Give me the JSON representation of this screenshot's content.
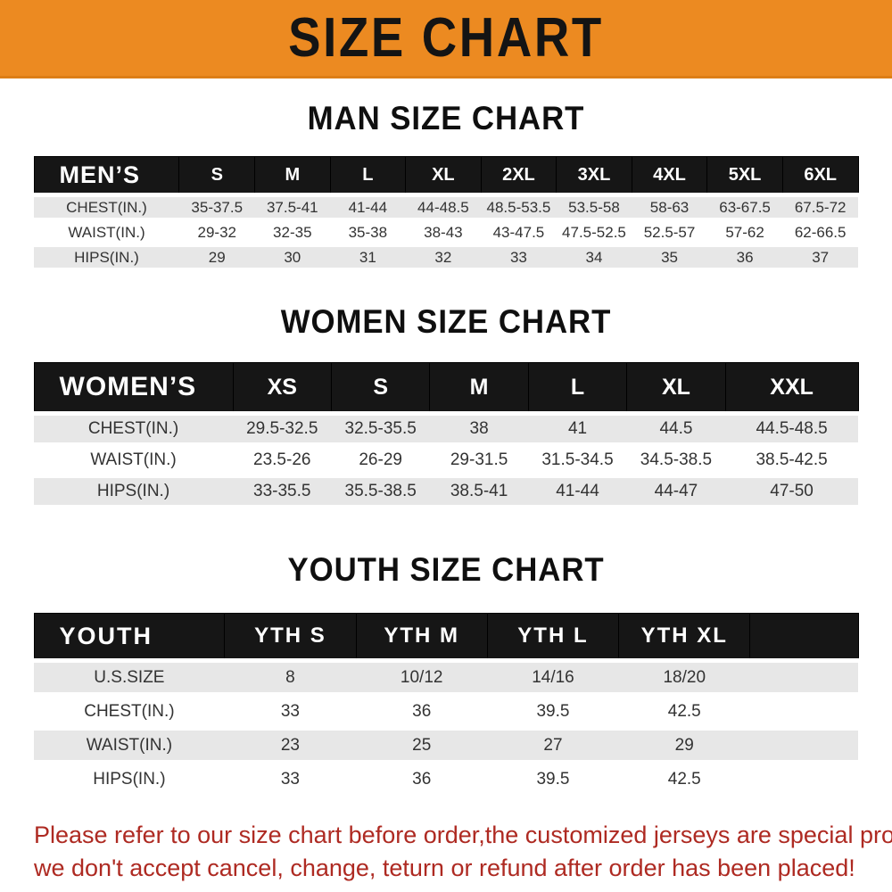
{
  "banner": {
    "title": "SIZE CHART"
  },
  "colors": {
    "banner_orange": "#EC8A21",
    "header_black": "#161616",
    "row_gray": "#E7E7E7",
    "footer_red": "#AE2A22"
  },
  "sections": [
    {
      "title": "MAN SIZE CHART",
      "header": [
        "MEN’S",
        "S",
        "M",
        "L",
        "XL",
        "2XL",
        "3XL",
        "4XL",
        "5XL",
        "6XL"
      ],
      "rows": [
        [
          "CHEST(IN.)",
          "35-37.5",
          "37.5-41",
          "41-44",
          "44-48.5",
          "48.5-53.5",
          "53.5-58",
          "58-63",
          "63-67.5",
          "67.5-72"
        ],
        [
          "WAIST(IN.)",
          "29-32",
          "32-35",
          "35-38",
          "38-43",
          "43-47.5",
          "47.5-52.5",
          "52.5-57",
          "57-62",
          "62-66.5"
        ],
        [
          "HIPS(IN.)",
          "29",
          "30",
          "31",
          "32",
          "33",
          "34",
          "35",
          "36",
          "37"
        ]
      ]
    },
    {
      "title": "WOMEN SIZE CHART",
      "header": [
        "WOMEN’S",
        "XS",
        "S",
        "M",
        "L",
        "XL",
        "XXL"
      ],
      "rows": [
        [
          "CHEST(IN.)",
          "29.5-32.5",
          "32.5-35.5",
          "38",
          "41",
          "44.5",
          "44.5-48.5"
        ],
        [
          "WAIST(IN.)",
          "23.5-26",
          "26-29",
          "29-31.5",
          "31.5-34.5",
          "34.5-38.5",
          "38.5-42.5"
        ],
        [
          "HIPS(IN.)",
          "33-35.5",
          "35.5-38.5",
          "38.5-41",
          "41-44",
          "44-47",
          "47-50"
        ]
      ]
    },
    {
      "title": "YOUTH SIZE CHART",
      "header": [
        "YOUTH",
        "YTH S",
        "YTH M",
        "YTH L",
        "YTH XL",
        ""
      ],
      "rows": [
        [
          "U.S.SIZE",
          "8",
          "10/12",
          "14/16",
          "18/20",
          ""
        ],
        [
          "CHEST(IN.)",
          "33",
          "36",
          "39.5",
          "42.5",
          ""
        ],
        [
          "WAIST(IN.)",
          "23",
          "25",
          "27",
          "29",
          ""
        ],
        [
          "HIPS(IN.)",
          "33",
          "36",
          "39.5",
          "42.5",
          ""
        ]
      ]
    }
  ],
  "footer": {
    "line1": "Please refer to our size chart before order,the customized jerseys are special products,",
    "line2": "we don't accept cancel, change, teturn or refund after order has been placed!"
  }
}
